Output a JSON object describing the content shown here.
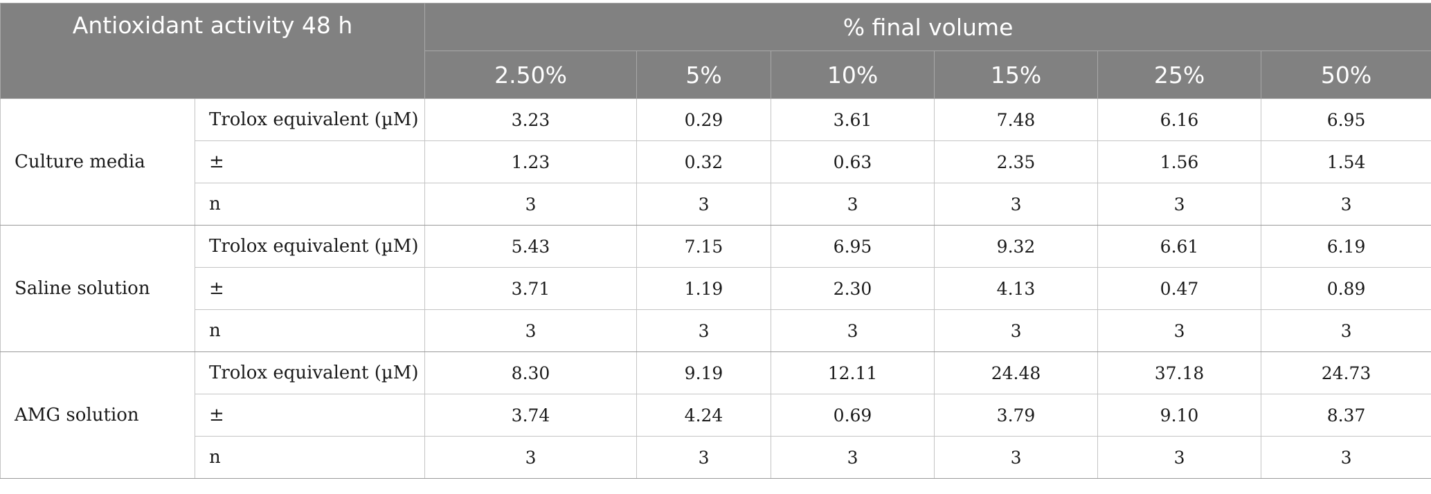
{
  "header": {
    "title": "Antioxidant activity 48 h",
    "span_label": "% final volume",
    "columns": [
      "2.50%",
      "5%",
      "10%",
      "15%",
      "25%",
      "50%"
    ]
  },
  "groups": [
    {
      "label": "Culture media",
      "rows": [
        {
          "metric": "Trolox equivalent (µM)",
          "values": [
            "3.23",
            "0.29",
            "3.61",
            "7.48",
            "6.16",
            "6.95"
          ]
        },
        {
          "metric": "±",
          "values": [
            "1.23",
            "0.32",
            "0.63",
            "2.35",
            "1.56",
            "1.54"
          ]
        },
        {
          "metric": "n",
          "values": [
            "3",
            "3",
            "3",
            "3",
            "3",
            "3"
          ]
        }
      ]
    },
    {
      "label": "Saline solution",
      "rows": [
        {
          "metric": "Trolox equivalent (µM)",
          "values": [
            "5.43",
            "7.15",
            "6.95",
            "9.32",
            "6.61",
            "6.19"
          ]
        },
        {
          "metric": "±",
          "values": [
            "3.71",
            "1.19",
            "2.30",
            "4.13",
            "0.47",
            "0.89"
          ]
        },
        {
          "metric": "n",
          "values": [
            "3",
            "3",
            "3",
            "3",
            "3",
            "3"
          ]
        }
      ]
    },
    {
      "label": "AMG solution",
      "rows": [
        {
          "metric": "Trolox equivalent (µM)",
          "values": [
            "8.30",
            "9.19",
            "12.11",
            "24.48",
            "37.18",
            "24.73"
          ]
        },
        {
          "metric": "±",
          "values": [
            "3.74",
            "4.24",
            "0.69",
            "3.79",
            "9.10",
            "8.37"
          ]
        },
        {
          "metric": "n",
          "values": [
            "3",
            "3",
            "3",
            "3",
            "3",
            "3"
          ]
        }
      ]
    }
  ]
}
